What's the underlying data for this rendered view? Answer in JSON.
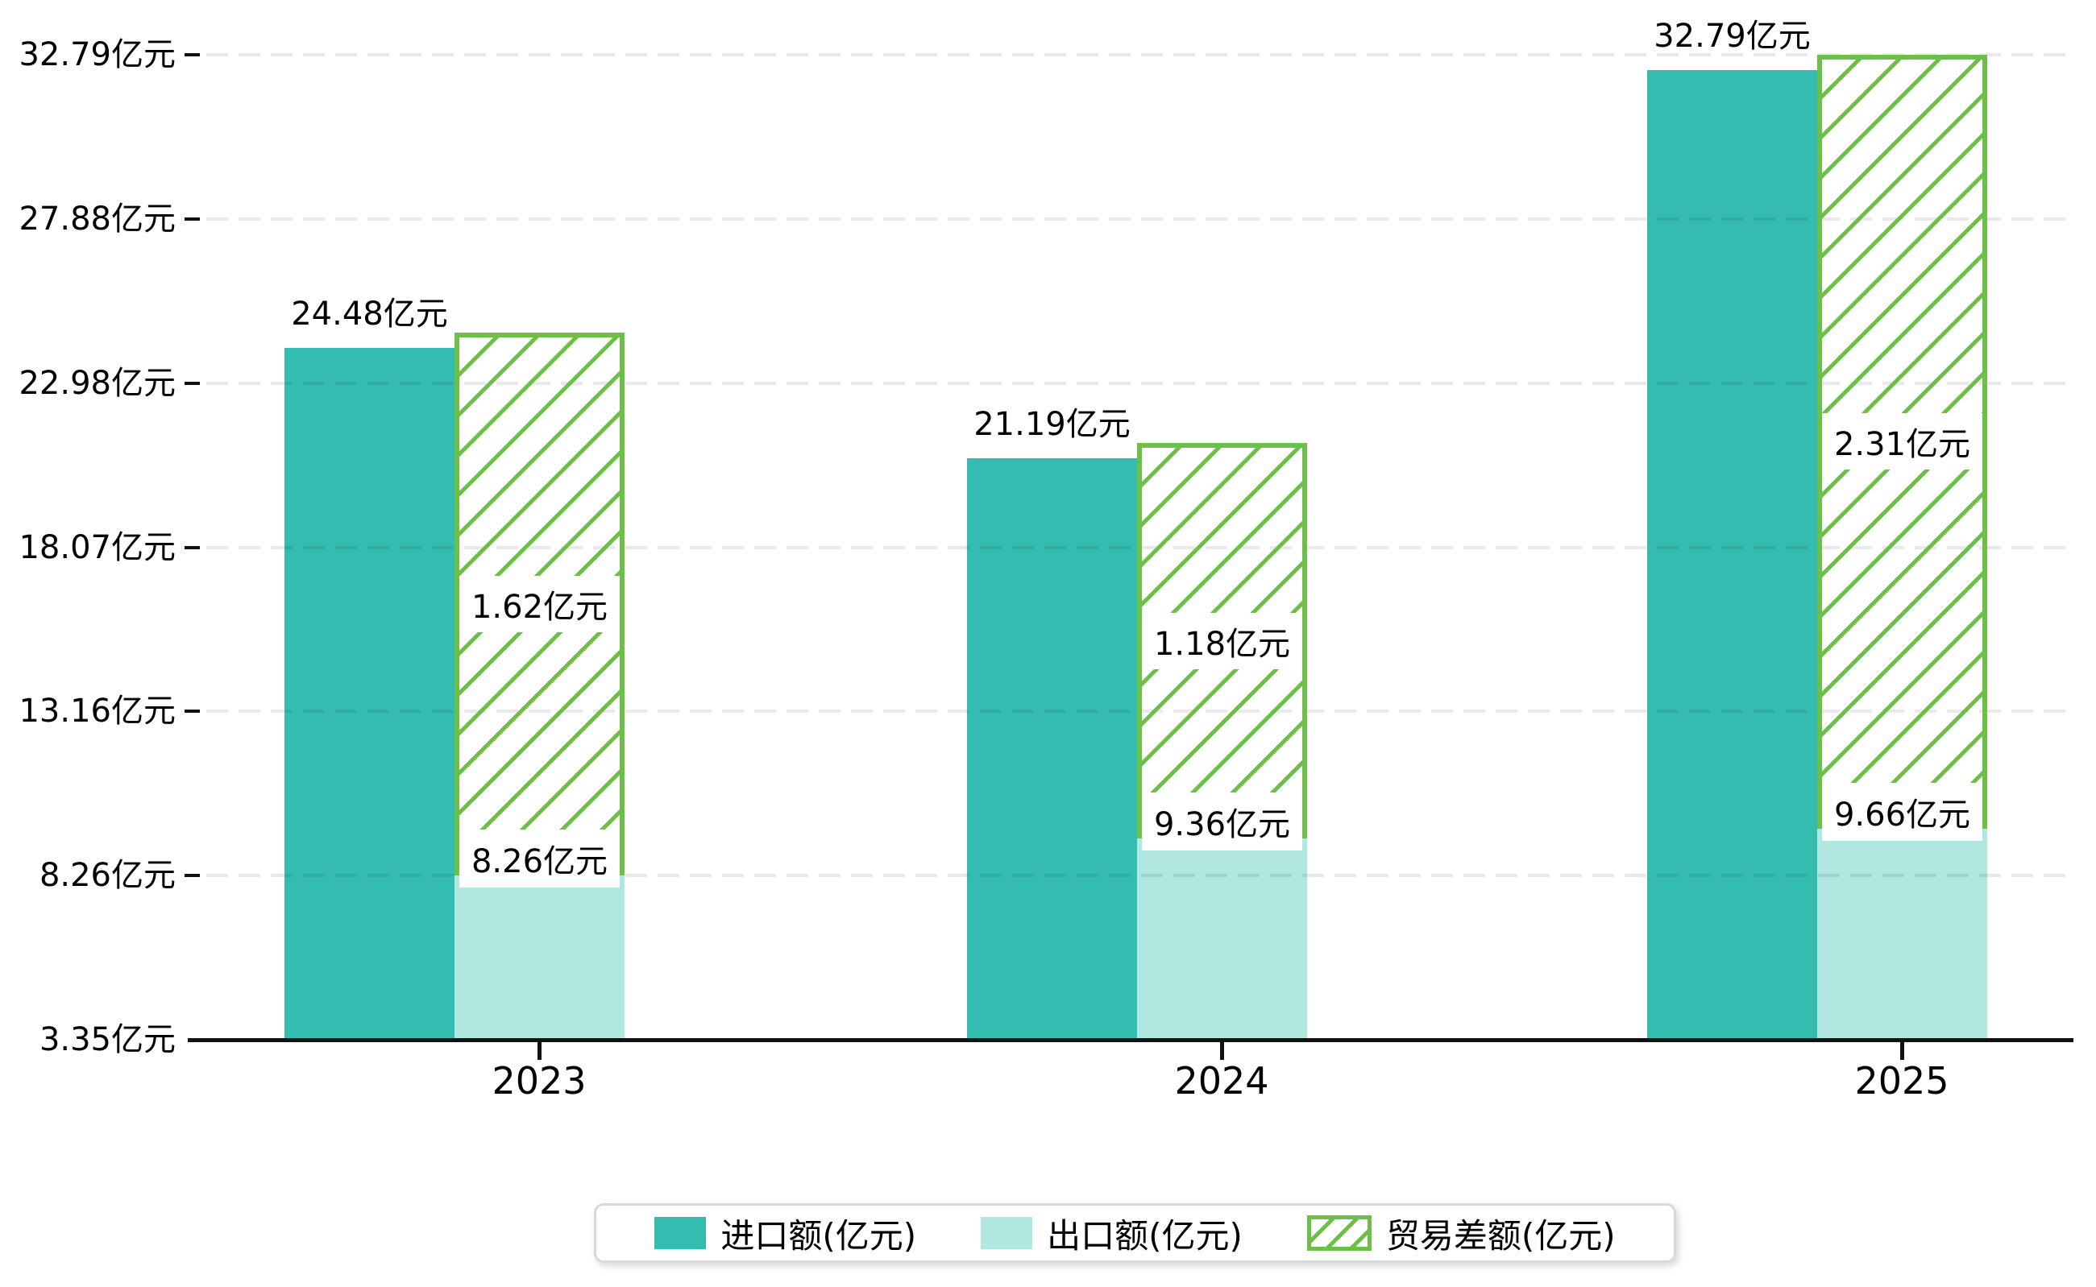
{
  "chart_data": {
    "type": "bar",
    "title": "",
    "categories": [
      "2023",
      "2024",
      "2025"
    ],
    "unit": "亿元",
    "series": [
      {
        "name": "进口额(亿元)",
        "role": "import",
        "values": [
          24.48,
          21.19,
          32.79
        ],
        "labels": [
          "24.48亿元",
          "21.19亿元",
          "32.79亿元"
        ],
        "color": "#35bcb0",
        "style": "solid"
      },
      {
        "name": "出口额(亿元)",
        "role": "export",
        "values": [
          8.26,
          9.36,
          9.66
        ],
        "labels": [
          "8.26亿元",
          "9.36亿元",
          "9.66亿元"
        ],
        "color": "#b0e7e0",
        "style": "solid"
      },
      {
        "name": "贸易差额(亿元)",
        "role": "trade-balance",
        "values": [
          1.62,
          1.18,
          2.31
        ],
        "labels": [
          "1.62亿元",
          "1.18亿元",
          "2.31亿元"
        ],
        "color": "#6cbf47",
        "style": "hatched",
        "note": "hatched segment drawn stacked on top of export bar, reaching the import total level"
      }
    ],
    "y_axis": {
      "tick_labels": [
        "32.79亿元",
        "27.88亿元",
        "22.98亿元",
        "18.07亿元",
        "13.16亿元",
        "8.26亿元",
        "3.35亿元"
      ],
      "tick_values": [
        32.79,
        27.88,
        22.98,
        18.07,
        13.16,
        8.26,
        3.35
      ],
      "min": 3.35,
      "max": 32.79
    },
    "grid": true,
    "legend_position": "bottom"
  },
  "legend": {
    "items": [
      {
        "label": "进口额(亿元)",
        "swatch": "teal-solid"
      },
      {
        "label": "出口额(亿元)",
        "swatch": "light-teal-solid"
      },
      {
        "label": "贸易差额(亿元)",
        "swatch": "green-hatched"
      }
    ]
  },
  "colors": {
    "import": "#35bcb0",
    "export": "#b0e7e0",
    "balance": "#6cbf47",
    "axis": "#111111",
    "gridline": "rgba(0,0,0,0.085)",
    "text": "#000000",
    "legend_border": "#d9d9d9"
  }
}
